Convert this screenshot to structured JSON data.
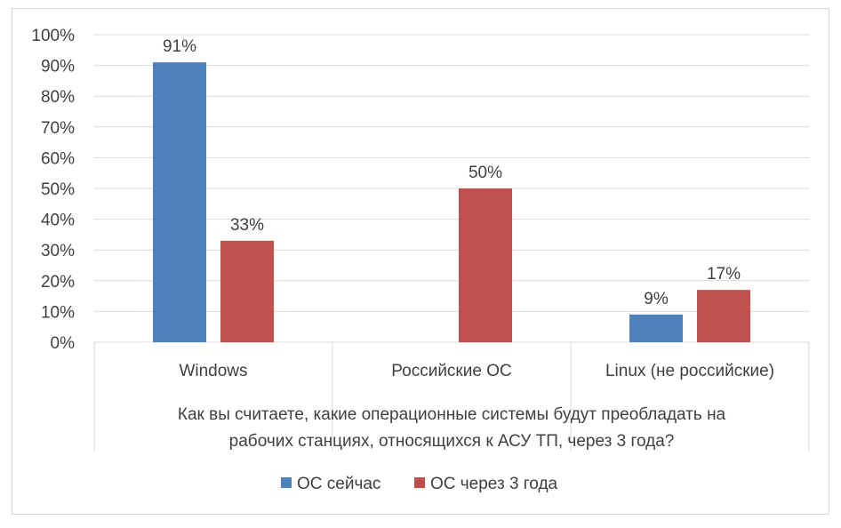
{
  "chart_data": {
    "type": "bar",
    "categories": [
      "Windows",
      "Российские ОС",
      "Linux (не российские)"
    ],
    "series": [
      {
        "name": "ОС сейчас",
        "color": "#4f81bd",
        "values": [
          91,
          null,
          9
        ],
        "labels": [
          "91%",
          "",
          "9%"
        ]
      },
      {
        "name": "ОС через 3 года",
        "color": "#c0504d",
        "values": [
          33,
          50,
          17
        ],
        "labels": [
          "33%",
          "50%",
          "17%"
        ]
      }
    ],
    "ylim": [
      0,
      100
    ],
    "yticks": [
      "0%",
      "10%",
      "20%",
      "30%",
      "40%",
      "50%",
      "60%",
      "70%",
      "80%",
      "90%",
      "100%"
    ],
    "xlabel": [
      "Как вы считаете, какие операционные системы будут преобладать на",
      "рабочих станциях, относящихся к АСУ ТП, через 3 года?"
    ],
    "grid": true,
    "legend_position": "bottom"
  }
}
